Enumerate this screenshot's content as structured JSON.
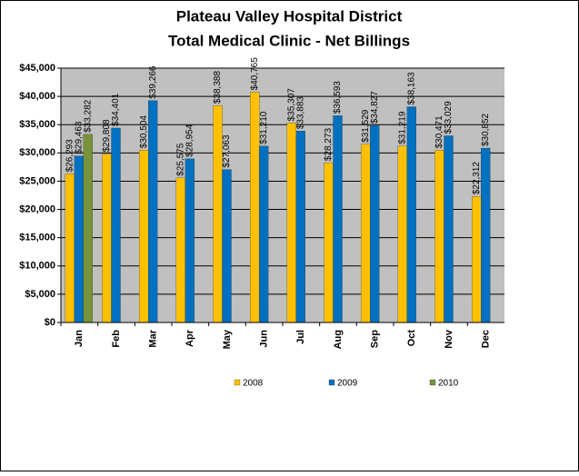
{
  "chart_data": {
    "type": "bar",
    "title": "Plateau Valley Hospital District",
    "subtitle": "Total Medical Clinic - Net Billings",
    "categories": [
      "Jan",
      "Feb",
      "Mar",
      "Apr",
      "May",
      "Jun",
      "Jul",
      "Aug",
      "Sep",
      "Oct",
      "Nov",
      "Dec"
    ],
    "series": [
      {
        "name": "2008",
        "color": "#ffc000",
        "values": [
          26293,
          29808,
          30504,
          25575,
          38388,
          40765,
          35307,
          28273,
          31529,
          31219,
          30471,
          22312
        ],
        "value_labels": [
          "$26,293",
          "$29,808",
          "$30,504",
          "$25,575",
          "$38,388",
          "$40,765",
          "$35,307",
          "$28,273",
          "$31,529",
          "$31,219",
          "$30,471",
          "$22,312"
        ]
      },
      {
        "name": "2009",
        "color": "#0070c0",
        "values": [
          29463,
          34401,
          39266,
          28954,
          27063,
          31210,
          33883,
          36593,
          34827,
          38163,
          33029,
          30852
        ],
        "value_labels": [
          "$29,463",
          "$34,401",
          "$39,266",
          "$28,954",
          "$27,063",
          "$31,210",
          "$33,883",
          "$36,593",
          "$34,827",
          "$38,163",
          "$33,029",
          "$30,852"
        ]
      },
      {
        "name": "2010",
        "color": "#77933c",
        "values": [
          33282,
          null,
          null,
          null,
          null,
          null,
          null,
          null,
          null,
          null,
          null,
          null
        ],
        "value_labels": [
          "$33,282",
          null,
          null,
          null,
          null,
          null,
          null,
          null,
          null,
          null,
          null,
          null
        ]
      }
    ],
    "ylim": [
      0,
      45000
    ],
    "yticks": [
      {
        "value": 0,
        "label": "$0"
      },
      {
        "value": 5000,
        "label": "$5,000"
      },
      {
        "value": 10000,
        "label": "$10,000"
      },
      {
        "value": 15000,
        "label": "$15,000"
      },
      {
        "value": 20000,
        "label": "$20,000"
      },
      {
        "value": 25000,
        "label": "$25,000"
      },
      {
        "value": 30000,
        "label": "$30,000"
      },
      {
        "value": 35000,
        "label": "$35,000"
      },
      {
        "value": 40000,
        "label": "$40,000"
      },
      {
        "value": 45000,
        "label": "$45,000"
      }
    ],
    "grid": true,
    "legend": "bottom"
  }
}
